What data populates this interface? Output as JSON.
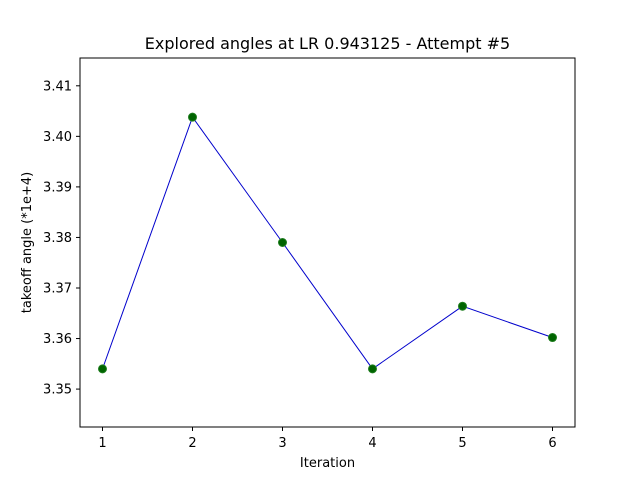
{
  "chart_data": {
    "type": "line",
    "title": "Explored angles at LR 0.943125 - Attempt #5",
    "xlabel": "Iteration",
    "ylabel": "takeoff angle (*1e+4)",
    "x": [
      1,
      2,
      3,
      4,
      5,
      6
    ],
    "y": [
      3.354,
      3.4038,
      3.379,
      3.354,
      3.3664,
      3.3602
    ],
    "xlim": [
      0.75,
      6.25
    ],
    "ylim": [
      3.3425,
      3.4155
    ],
    "xticks": [
      1,
      2,
      3,
      4,
      5,
      6
    ],
    "yticks": [
      3.35,
      3.36,
      3.37,
      3.38,
      3.39,
      3.4,
      3.41
    ],
    "ytick_labels": [
      "3.35",
      "3.36",
      "3.37",
      "3.38",
      "3.39",
      "3.40",
      "3.41"
    ],
    "grid": false,
    "line_color": "#0000cc",
    "marker_color": "#006400",
    "marker_edge_color": "#1e7d1e"
  }
}
